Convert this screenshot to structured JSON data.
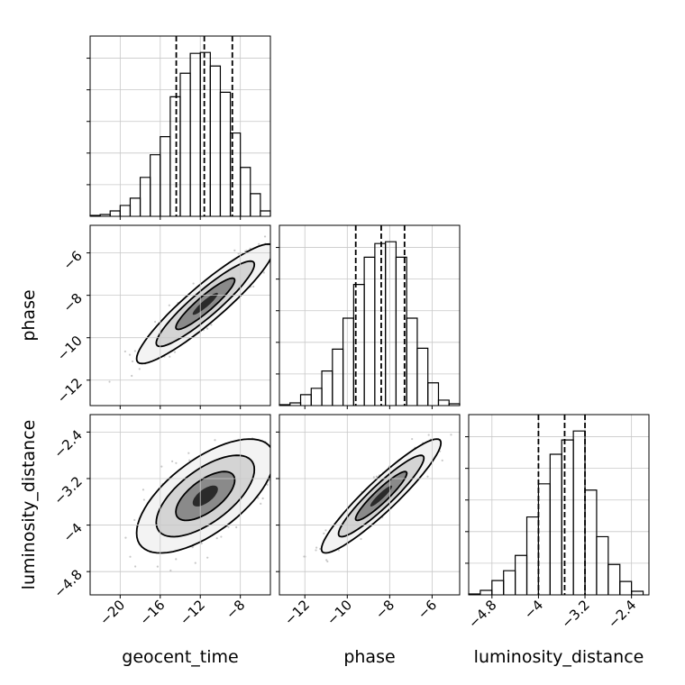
{
  "chart_data": {
    "type": "corner",
    "parameters": [
      "geocent_time",
      "phase",
      "luminosity_distance"
    ],
    "axes": {
      "geocent_time": {
        "label": "geocent_time",
        "range": [
          -23,
          -5
        ],
        "ticks": [
          -20,
          -16,
          -12,
          -8
        ]
      },
      "phase": {
        "label": "phase",
        "range": [
          -13.2,
          -4.7
        ],
        "ticks": [
          -12,
          -10,
          -8,
          -6
        ]
      },
      "luminosity_distance": {
        "label": "luminosity_distance",
        "range": [
          -5.2,
          -2.1
        ],
        "ticks": [
          -4.8,
          -4.0,
          -3.2,
          -2.4
        ]
      }
    },
    "histograms": [
      {
        "param": "geocent_time",
        "bin_edges": [
          -23,
          -22,
          -21,
          -20,
          -19,
          -18,
          -17,
          -16,
          -15,
          -14,
          -13,
          -12,
          -11,
          -10,
          -9,
          -8,
          -7,
          -6,
          -5
        ],
        "counts": [
          1,
          2,
          6,
          12,
          20,
          43,
          68,
          88,
          132,
          158,
          180,
          181,
          166,
          137,
          92,
          54,
          25,
          6
        ],
        "quantiles": [
          -14.4,
          -11.6,
          -8.8
        ]
      },
      {
        "param": "phase",
        "bin_edges": [
          -13.2,
          -12.7,
          -12.2,
          -11.7,
          -11.2,
          -10.7,
          -10.2,
          -9.7,
          -9.2,
          -8.7,
          -8.2,
          -7.7,
          -7.2,
          -6.7,
          -6.2,
          -5.7,
          -5.2,
          -4.7
        ],
        "counts": [
          1,
          3,
          12,
          19,
          38,
          62,
          96,
          133,
          163,
          178,
          180,
          163,
          96,
          63,
          25,
          6,
          2
        ],
        "quantiles": [
          -9.6,
          -8.4,
          -7.3
        ]
      },
      {
        "param": "luminosity_distance",
        "bin_edges": [
          -5.2,
          -5.0,
          -4.8,
          -4.6,
          -4.4,
          -4.2,
          -4.0,
          -3.8,
          -3.6,
          -3.4,
          -3.2,
          -3.0,
          -2.8,
          -2.6,
          -2.4,
          -2.2
        ],
        "counts": [
          1,
          5,
          16,
          27,
          44,
          87,
          124,
          157,
          173,
          183,
          117,
          65,
          34,
          15,
          4
        ],
        "quantiles": [
          -4.0,
          -3.55,
          -3.2
        ]
      }
    ],
    "joint": [
      {
        "x": "geocent_time",
        "y": "phase",
        "peak": {
          "x": -11.5,
          "y": -8.4
        },
        "correlation": 0.92
      },
      {
        "x": "geocent_time",
        "y": "luminosity_distance",
        "peak": {
          "x": -11.5,
          "y": -3.5
        },
        "correlation": 0.65
      },
      {
        "x": "phase",
        "y": "luminosity_distance",
        "peak": {
          "x": -8.4,
          "y": -3.5
        },
        "correlation": 0.93
      }
    ],
    "grid": true,
    "quantile_lines": "dashed"
  }
}
